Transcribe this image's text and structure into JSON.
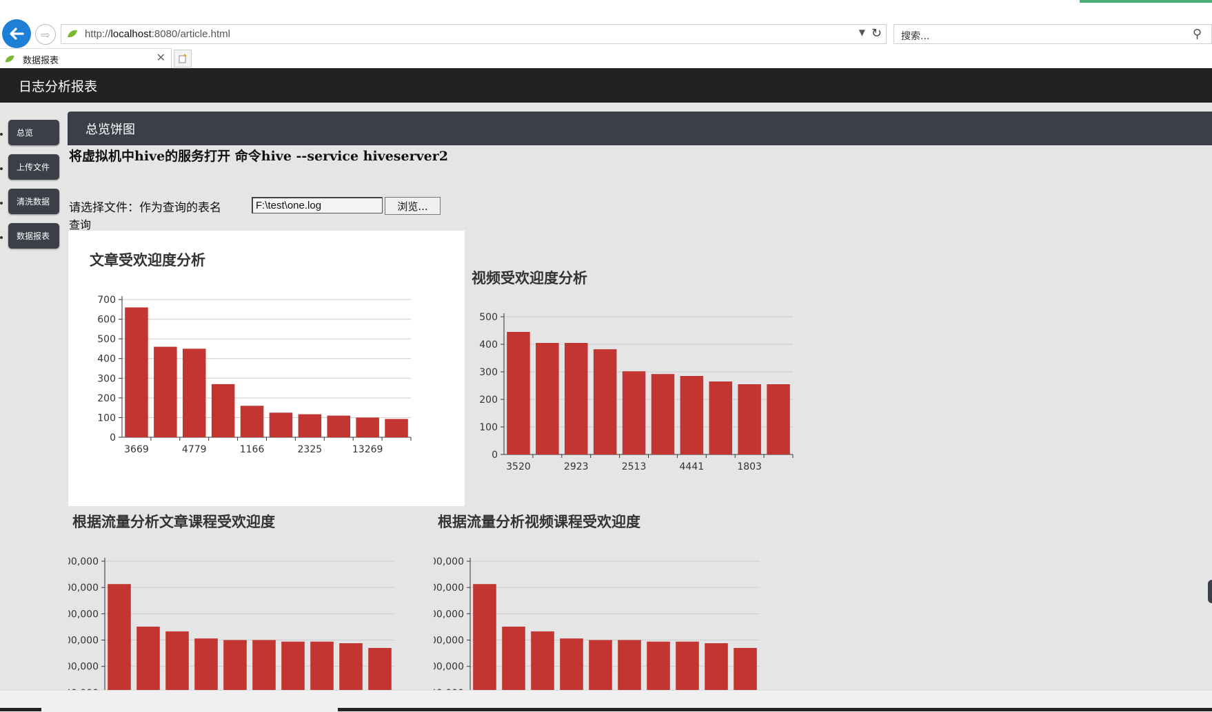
{
  "browser": {
    "url_prefix": "http://",
    "url_host": "localhost",
    "url_rest": ":8080/article.html",
    "search_placeholder": "搜索...",
    "tab_title": "数据报表"
  },
  "app": {
    "title": "日志分析报表",
    "sidebar": [
      {
        "label": "总览"
      },
      {
        "label": "上传文件"
      },
      {
        "label": "清洗数据"
      },
      {
        "label": "数据报表"
      }
    ],
    "section_title": "总览饼图",
    "hint": "将虚拟机中hive的服务打开 命令hive --service hiveserver2",
    "file_label": "请选择文件：作为查询的表名",
    "file_value": "F:\\test\\one.log",
    "browse_label": "浏览...",
    "query_label": "查询"
  },
  "colors": {
    "bar": "#c23531",
    "dark": "#3b3f48"
  },
  "chart_data": [
    {
      "type": "bar",
      "title": "文章受欢迎度分析",
      "categories": [
        "3669",
        "",
        "4779",
        "",
        "1166",
        "",
        "2325",
        "",
        "13269",
        ""
      ],
      "values": [
        660,
        460,
        450,
        270,
        160,
        125,
        117,
        110,
        100,
        93
      ],
      "ylim": [
        0,
        700
      ],
      "yticks": [
        "0",
        "100",
        "200",
        "300",
        "400",
        "500",
        "600",
        "700"
      ]
    },
    {
      "type": "bar",
      "title": "视频受欢迎度分析",
      "categories": [
        "3520",
        "",
        "2923",
        "",
        "2513",
        "",
        "4441",
        "",
        "1803",
        ""
      ],
      "values": [
        445,
        405,
        405,
        382,
        302,
        292,
        285,
        265,
        255,
        255
      ],
      "ylim": [
        0,
        500
      ],
      "yticks": [
        "0",
        "100",
        "200",
        "300",
        "400",
        "500"
      ]
    },
    {
      "type": "bar",
      "title": "根据流量分析文章课程受欢迎度",
      "values": [
        0.855,
        0.585,
        0.555,
        0.51,
        0.5,
        0.5,
        0.49,
        0.49,
        0.48,
        0.45
      ],
      "yticks": [
        "00,000",
        "00,000",
        "00,000",
        "00,000",
        "00,000",
        "00,000",
        "00,000"
      ]
    },
    {
      "type": "bar",
      "title": "根据流量分析视频课程受欢迎度",
      "values": [
        0.855,
        0.585,
        0.555,
        0.51,
        0.5,
        0.5,
        0.49,
        0.49,
        0.48,
        0.45
      ],
      "yticks": [
        "00,000",
        "00,000",
        "00,000",
        "00,000",
        "00,000",
        "00,000",
        "00,000"
      ]
    }
  ]
}
